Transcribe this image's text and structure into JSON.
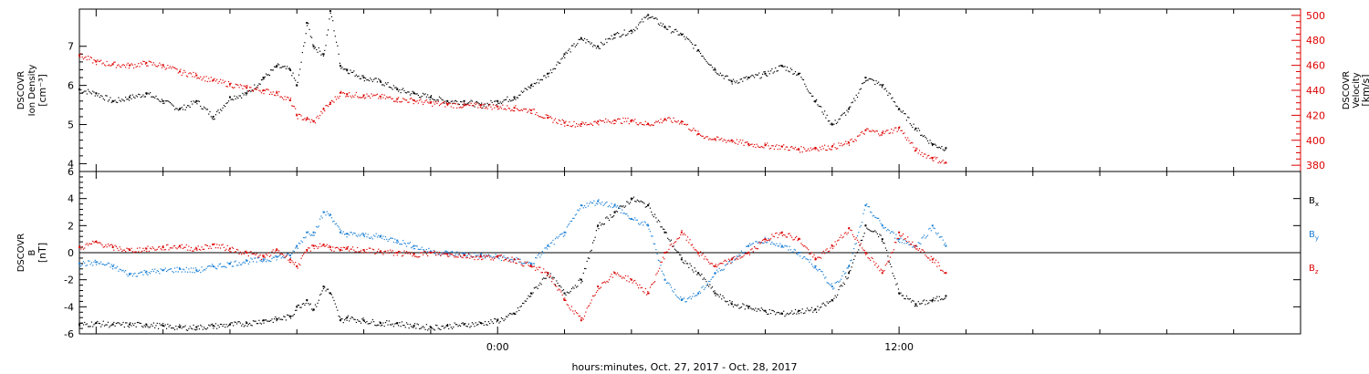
{
  "chart_data": [
    {
      "type": "scatter",
      "ylabel_lines": [
        "DSCOVR",
        "Ion Density",
        "[cm⁻³]"
      ],
      "ylim": [
        3.8,
        7.95
      ],
      "yticks": [
        "4",
        "5",
        "6",
        "7"
      ],
      "y2label_lines": [
        "DSCOVR",
        "Velocity",
        "[km/s]"
      ],
      "y2lim": [
        375,
        505
      ],
      "y2ticks": [
        "380",
        "400",
        "420",
        "440",
        "460",
        "480",
        "500"
      ],
      "series": [
        {
          "color": "#000000",
          "axis": "left",
          "x": [
            -12.5,
            -12,
            -11.5,
            -11,
            -10.5,
            -10,
            -9.5,
            -9,
            -8.5,
            -8,
            -7.5,
            -7,
            -6.6,
            -6.2,
            -6,
            -5.7,
            -5.5,
            -5.2,
            -5,
            -4.7,
            -4.5,
            -4,
            -3.5,
            -3,
            -2.5,
            -2,
            -1.5,
            -1,
            -0.5,
            0,
            0.5,
            1,
            1.5,
            2,
            2.5,
            3,
            3.5,
            4,
            4.5,
            5,
            5.5,
            6,
            6.5,
            7,
            7.5,
            8,
            8.5,
            9,
            9.5,
            10,
            10.5,
            11,
            11.5,
            12,
            12.5,
            13,
            13.4
          ],
          "y": [
            5.9,
            5.8,
            5.6,
            5.7,
            5.8,
            5.6,
            5.4,
            5.6,
            5.2,
            5.7,
            5.8,
            6.2,
            6.5,
            6.4,
            6.0,
            7.6,
            7.0,
            6.8,
            7.9,
            6.5,
            6.4,
            6.2,
            6.1,
            5.9,
            5.8,
            5.7,
            5.6,
            5.6,
            5.5,
            5.6,
            5.7,
            6.0,
            6.3,
            6.8,
            7.2,
            7.0,
            7.3,
            7.4,
            7.8,
            7.5,
            7.3,
            6.9,
            6.4,
            6.1,
            6.2,
            6.3,
            6.5,
            6.3,
            5.6,
            5.0,
            5.4,
            6.2,
            6.0,
            5.4,
            4.9,
            4.5,
            4.4
          ]
        },
        {
          "color": "#dd0000",
          "axis": "right",
          "x": [
            -12.5,
            -12,
            -11.5,
            -11,
            -10.5,
            -10,
            -9.5,
            -9,
            -8.5,
            -8,
            -7.5,
            -7,
            -6.6,
            -6.2,
            -6,
            -5.7,
            -5.5,
            -5.2,
            -5,
            -4.7,
            -4.5,
            -4,
            -3.5,
            -3,
            -2.5,
            -2,
            -1.5,
            -1,
            -0.5,
            0,
            0.5,
            1,
            1.5,
            2,
            2.5,
            3,
            3.5,
            4,
            4.5,
            5,
            5.5,
            6,
            6.5,
            7,
            7.5,
            8,
            8.5,
            9,
            9.5,
            10,
            10.5,
            11,
            11.5,
            12,
            12.5,
            13,
            13.4
          ],
          "y": [
            468,
            463,
            461,
            460,
            462,
            460,
            455,
            452,
            448,
            445,
            442,
            440,
            438,
            432,
            420,
            417,
            415,
            425,
            430,
            438,
            437,
            436,
            435,
            433,
            432,
            430,
            429,
            428,
            428,
            427,
            426,
            424,
            418,
            414,
            413,
            415,
            416,
            416,
            413,
            417,
            415,
            405,
            401,
            400,
            397,
            396,
            395,
            393,
            394,
            395,
            398,
            408,
            406,
            410,
            392,
            386,
            382
          ]
        }
      ]
    },
    {
      "type": "scatter",
      "ylabel_lines": [
        "DSCOVR",
        "B",
        "[nT]"
      ],
      "ylim": [
        -6,
        6
      ],
      "yticks": [
        "-6",
        "-4",
        "-2",
        "0",
        "2",
        "4",
        "6"
      ],
      "zero_line": true,
      "legend_position": "right",
      "series": [
        {
          "name": "B",
          "subscript": "x",
          "color": "#000000",
          "x": [
            -12.5,
            -12,
            -11.5,
            -11,
            -10.5,
            -10,
            -9.5,
            -9,
            -8.5,
            -8,
            -7.5,
            -7,
            -6.6,
            -6.2,
            -6,
            -5.7,
            -5.5,
            -5.2,
            -5,
            -4.7,
            -4.5,
            -4,
            -3.5,
            -3,
            -2.5,
            -2,
            -1.5,
            -1,
            -0.5,
            0,
            0.5,
            1,
            1.5,
            2,
            2.5,
            3,
            3.5,
            4,
            4.5,
            5,
            5.5,
            6,
            6.5,
            7,
            7.5,
            8,
            8.5,
            9,
            9.5,
            10,
            10.5,
            11,
            11.5,
            12,
            12.5,
            13,
            13.4
          ],
          "y": [
            -5.3,
            -5.2,
            -5.3,
            -5.3,
            -5.3,
            -5.4,
            -5.5,
            -5.5,
            -5.4,
            -5.3,
            -5.2,
            -5.0,
            -4.9,
            -4.7,
            -4.0,
            -3.5,
            -4.2,
            -2.5,
            -3.0,
            -5.0,
            -4.8,
            -5.0,
            -5.2,
            -5.2,
            -5.4,
            -5.5,
            -5.4,
            -5.3,
            -5.2,
            -5.0,
            -4.5,
            -3.0,
            -1.5,
            -3.0,
            -2.0,
            2.0,
            3.0,
            4.0,
            3.5,
            1.5,
            -0.5,
            -1.5,
            -3.0,
            -3.8,
            -4.0,
            -4.3,
            -4.5,
            -4.3,
            -4.2,
            -3.5,
            -1.5,
            2.0,
            1.0,
            -3.0,
            -3.8,
            -3.5,
            -3.2
          ]
        },
        {
          "name": "B",
          "subscript": "y",
          "color": "#1a7fd4",
          "x": [
            -12.5,
            -12,
            -11.5,
            -11,
            -10.5,
            -10,
            -9.5,
            -9,
            -8.5,
            -8,
            -7.5,
            -7,
            -6.6,
            -6.2,
            -6,
            -5.7,
            -5.5,
            -5.2,
            -5,
            -4.7,
            -4.5,
            -4,
            -3.5,
            -3,
            -2.5,
            -2,
            -1.5,
            -1,
            -0.5,
            0,
            0.5,
            1,
            1.5,
            2,
            2.5,
            3,
            3.5,
            4,
            4.5,
            5,
            5.5,
            6,
            6.5,
            7,
            7.5,
            8,
            8.5,
            9,
            9.5,
            10,
            10.5,
            11,
            11.5,
            12,
            12.5,
            13,
            13.4
          ],
          "y": [
            -0.8,
            -0.7,
            -1.0,
            -1.6,
            -1.4,
            -1.3,
            -1.2,
            -1.3,
            -1.0,
            -0.8,
            -0.6,
            -0.5,
            -0.3,
            -0.2,
            0.5,
            1.5,
            1.5,
            3.0,
            2.8,
            1.5,
            1.4,
            1.3,
            1.2,
            0.9,
            0.5,
            0.1,
            0.0,
            -0.1,
            -0.2,
            -0.3,
            -0.5,
            -0.8,
            0.5,
            1.5,
            3.5,
            3.8,
            3.5,
            2.5,
            2.0,
            -2.0,
            -3.5,
            -3.0,
            -1.5,
            -0.5,
            0.5,
            1.0,
            0.5,
            0.0,
            -1.0,
            -2.5,
            -1.0,
            3.5,
            2.0,
            1.0,
            0.5,
            2.0,
            0.5
          ]
        },
        {
          "name": "B",
          "subscript": "z",
          "color": "#dd0000",
          "x": [
            -12.5,
            -12,
            -11.5,
            -11,
            -10.5,
            -10,
            -9.5,
            -9,
            -8.5,
            -8,
            -7.5,
            -7,
            -6.6,
            -6.2,
            -6,
            -5.7,
            -5.5,
            -5.2,
            -5,
            -4.7,
            -4.5,
            -4,
            -3.5,
            -3,
            -2.5,
            -2,
            -1.5,
            -1,
            -0.5,
            0,
            0.5,
            1,
            1.5,
            2,
            2.5,
            3,
            3.5,
            4,
            4.5,
            5,
            5.5,
            6,
            6.5,
            7,
            7.5,
            8,
            8.5,
            9,
            9.5,
            10,
            10.5,
            11,
            11.5,
            12,
            12.5,
            13,
            13.4
          ],
          "y": [
            0.4,
            0.8,
            0.4,
            0.2,
            0.3,
            0.4,
            0.5,
            0.3,
            0.6,
            0.3,
            0.0,
            -0.3,
            0.2,
            -0.5,
            -1.0,
            0.2,
            0.5,
            0.6,
            0.4,
            0.2,
            0.3,
            0.2,
            0.1,
            0.0,
            -0.1,
            0.0,
            -0.1,
            -0.2,
            -0.3,
            -0.3,
            -0.5,
            -1.0,
            -1.5,
            -3.5,
            -5.0,
            -2.5,
            -1.5,
            -2.0,
            -3.0,
            0.0,
            1.5,
            0.0,
            -1.0,
            -0.5,
            0.0,
            1.0,
            1.5,
            1.0,
            -0.5,
            0.5,
            1.8,
            0.0,
            -1.5,
            1.5,
            0.5,
            -0.5,
            -1.5
          ]
        }
      ]
    }
  ],
  "xaxis": {
    "label": "hours:minutes, Oct. 27, 2017 - Oct. 28, 2017",
    "xlim": [
      -12.5,
      24
    ],
    "ticks": [
      {
        "value": 0,
        "label": "0:00"
      },
      {
        "value": 12,
        "label": "12:00"
      }
    ]
  },
  "colors": {
    "black": "#000000",
    "red": "#dd0000",
    "blue": "#1a7fd4"
  }
}
